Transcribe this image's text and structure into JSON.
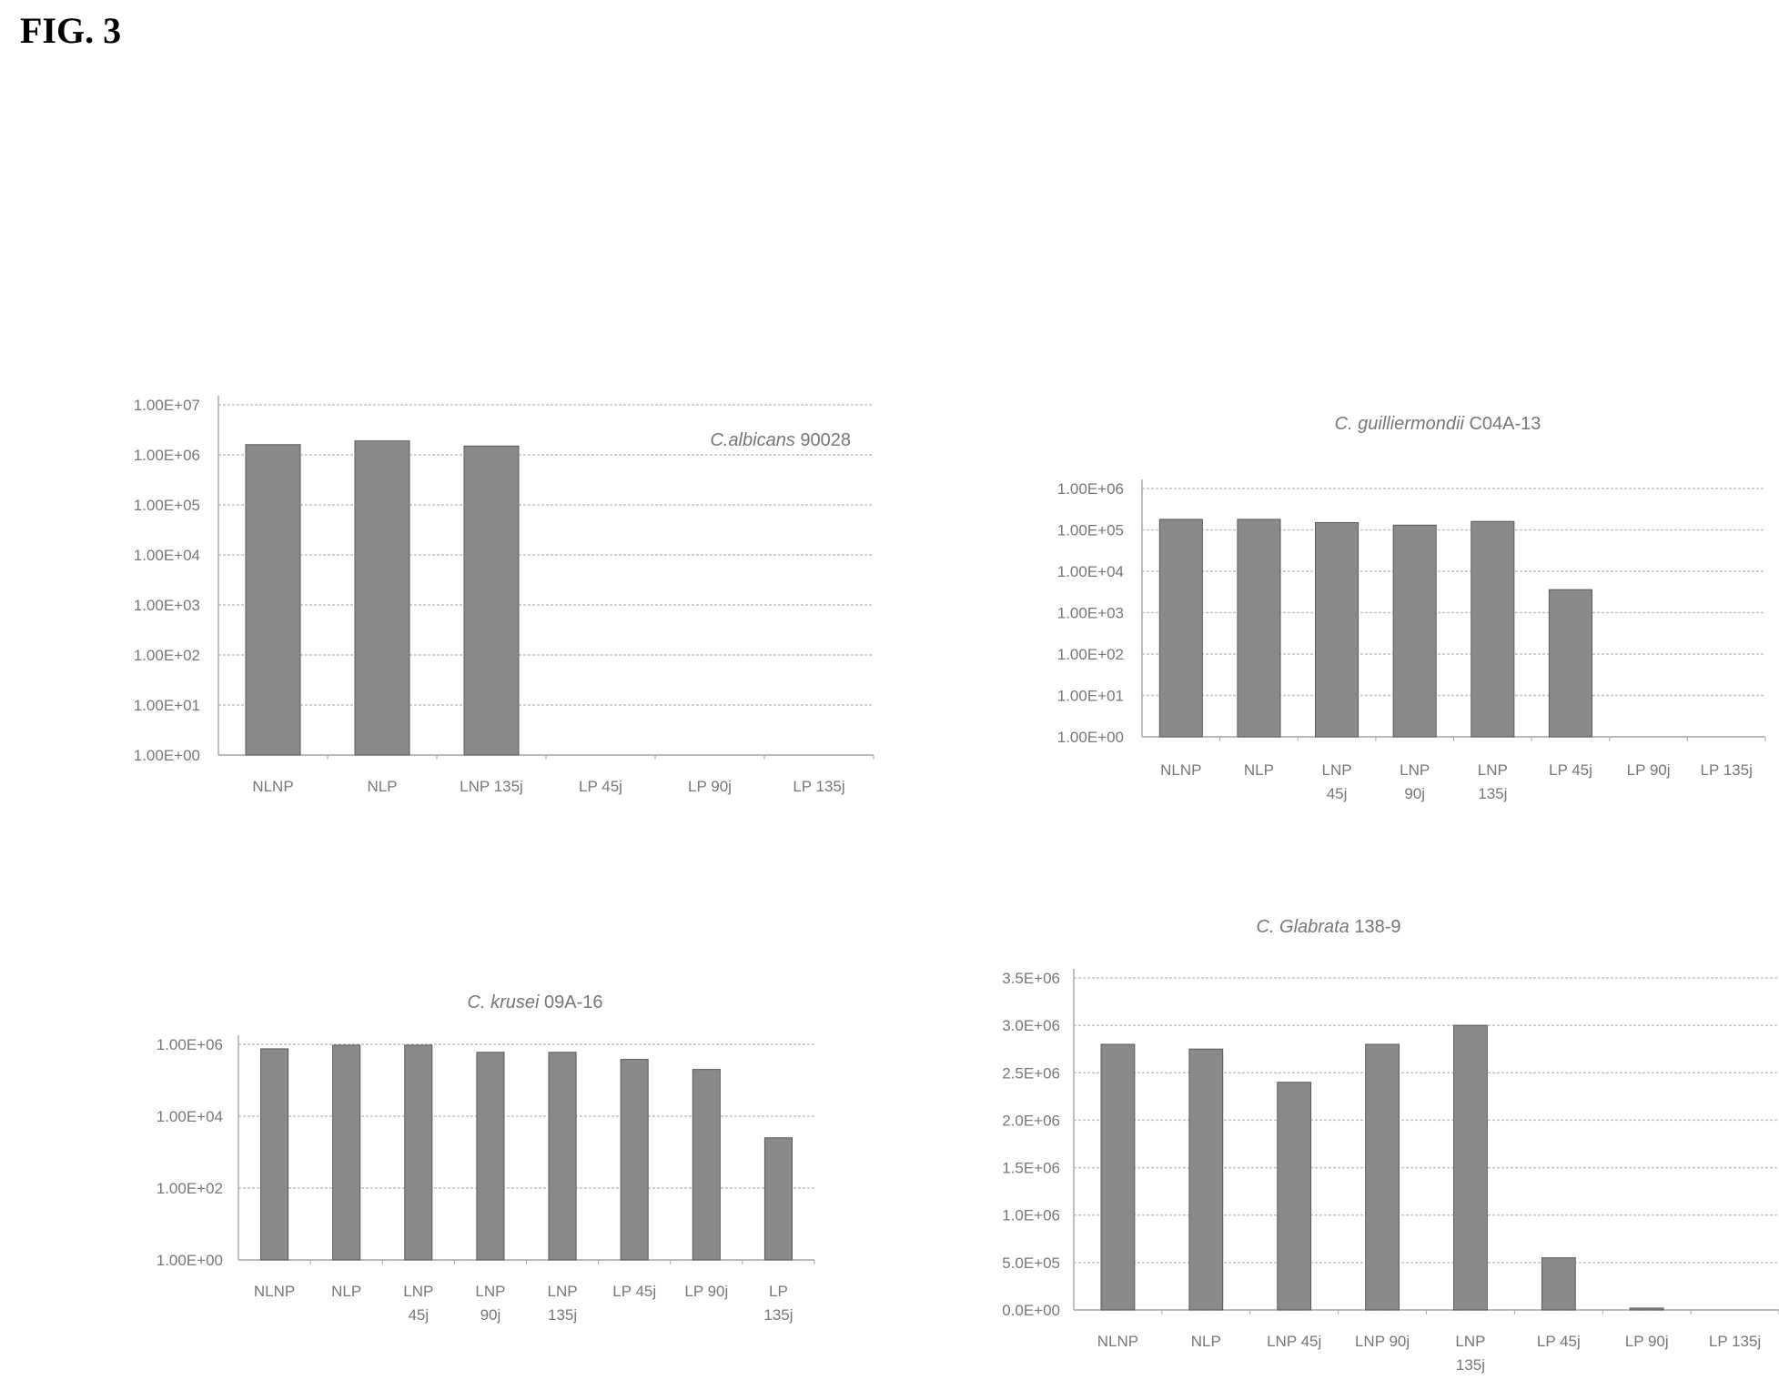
{
  "figure_label": "FIG. 3",
  "colors": {
    "bar": "#8a8a8a",
    "bar_edge": "#5a5a5a",
    "grid": "#c4c4c4",
    "axis": "#aaaaaa",
    "text": "#777777"
  },
  "chart_data": [
    {
      "type": "bar",
      "title": "C.albicans 90028",
      "title_parts": [
        {
          "text": "C.albicans",
          "italic": true
        },
        {
          "text": " 90028",
          "italic": false
        }
      ],
      "title_position": "top-right",
      "y_scale": "log",
      "ylim": [
        1,
        10000000
      ],
      "yticks": [
        1,
        10,
        100,
        1000,
        10000,
        100000,
        1000000,
        10000000
      ],
      "ytick_labels": [
        "1.00E+00",
        "1.00E+01",
        "1.00E+02",
        "1.00E+03",
        "1.00E+04",
        "1.00E+05",
        "1.00E+06",
        "1.00E+07"
      ],
      "categories": [
        "NLNP",
        "NLP",
        "LNP 135j",
        "LP 45j",
        "LP 90j",
        "LP 135j"
      ],
      "values": [
        1600000,
        1900000,
        1500000,
        0,
        0,
        0
      ],
      "grid": true
    },
    {
      "type": "bar",
      "title": "C. guilliermondii C04A-13",
      "title_parts": [
        {
          "text": "C. guilliermondii",
          "italic": true
        },
        {
          "text": " C04A-13",
          "italic": false
        }
      ],
      "title_position": "top-center",
      "y_scale": "log",
      "ylim": [
        1,
        1000000
      ],
      "yticks": [
        1,
        10,
        100,
        1000,
        10000,
        100000,
        1000000
      ],
      "ytick_labels": [
        "1.00E+00",
        "1.00E+01",
        "1.00E+02",
        "1.00E+03",
        "1.00E+04",
        "1.00E+05",
        "1.00E+06"
      ],
      "categories": [
        "NLNP",
        "NLP",
        "LNP\n45j",
        "LNP\n90j",
        "LNP\n135j",
        "LP 45j",
        "LP 90j",
        "LP 135j"
      ],
      "values": [
        180000,
        180000,
        150000,
        130000,
        160000,
        3600,
        0,
        0
      ],
      "grid": true
    },
    {
      "type": "bar",
      "title": "C. krusei 09A-16",
      "title_parts": [
        {
          "text": "C. krusei",
          "italic": true
        },
        {
          "text": " 09A-16",
          "italic": false
        }
      ],
      "title_position": "top-center",
      "y_scale": "log",
      "ylim": [
        1,
        1000000
      ],
      "yticks": [
        1,
        100,
        10000,
        1000000
      ],
      "ytick_labels": [
        "1.00E+00",
        "1.00E+02",
        "1.00E+04",
        "1.00E+06"
      ],
      "categories": [
        "NLNP",
        "NLP",
        "LNP\n45j",
        "LNP\n90j",
        "LNP\n135j",
        "LP 45j",
        "LP 90j",
        "LP\n135j"
      ],
      "values": [
        750000,
        950000,
        950000,
        600000,
        600000,
        380000,
        200000,
        2500
      ],
      "grid": true
    },
    {
      "type": "bar",
      "title": "C. Glabrata 138-9",
      "title_parts": [
        {
          "text": "C. Glabrata",
          "italic": true
        },
        {
          "text": " 138-9",
          "italic": false
        }
      ],
      "title_position": "top-center",
      "y_scale": "linear",
      "ylim": [
        0,
        3500000
      ],
      "yticks": [
        0,
        500000,
        1000000,
        1500000,
        2000000,
        2500000,
        3000000,
        3500000
      ],
      "ytick_labels": [
        "0.0E+00",
        "5.0E+05",
        "1.0E+06",
        "1.5E+06",
        "2.0E+06",
        "2.5E+06",
        "3.0E+06",
        "3.5E+06"
      ],
      "categories": [
        "NLNP",
        "NLP",
        "LNP 45j",
        "LNP 90j",
        "LNP\n135j",
        "LP 45j",
        "LP 90j",
        "LP 135j"
      ],
      "values": [
        2800000,
        2750000,
        2400000,
        2800000,
        3000000,
        550000,
        20000,
        0
      ],
      "grid": true
    }
  ]
}
